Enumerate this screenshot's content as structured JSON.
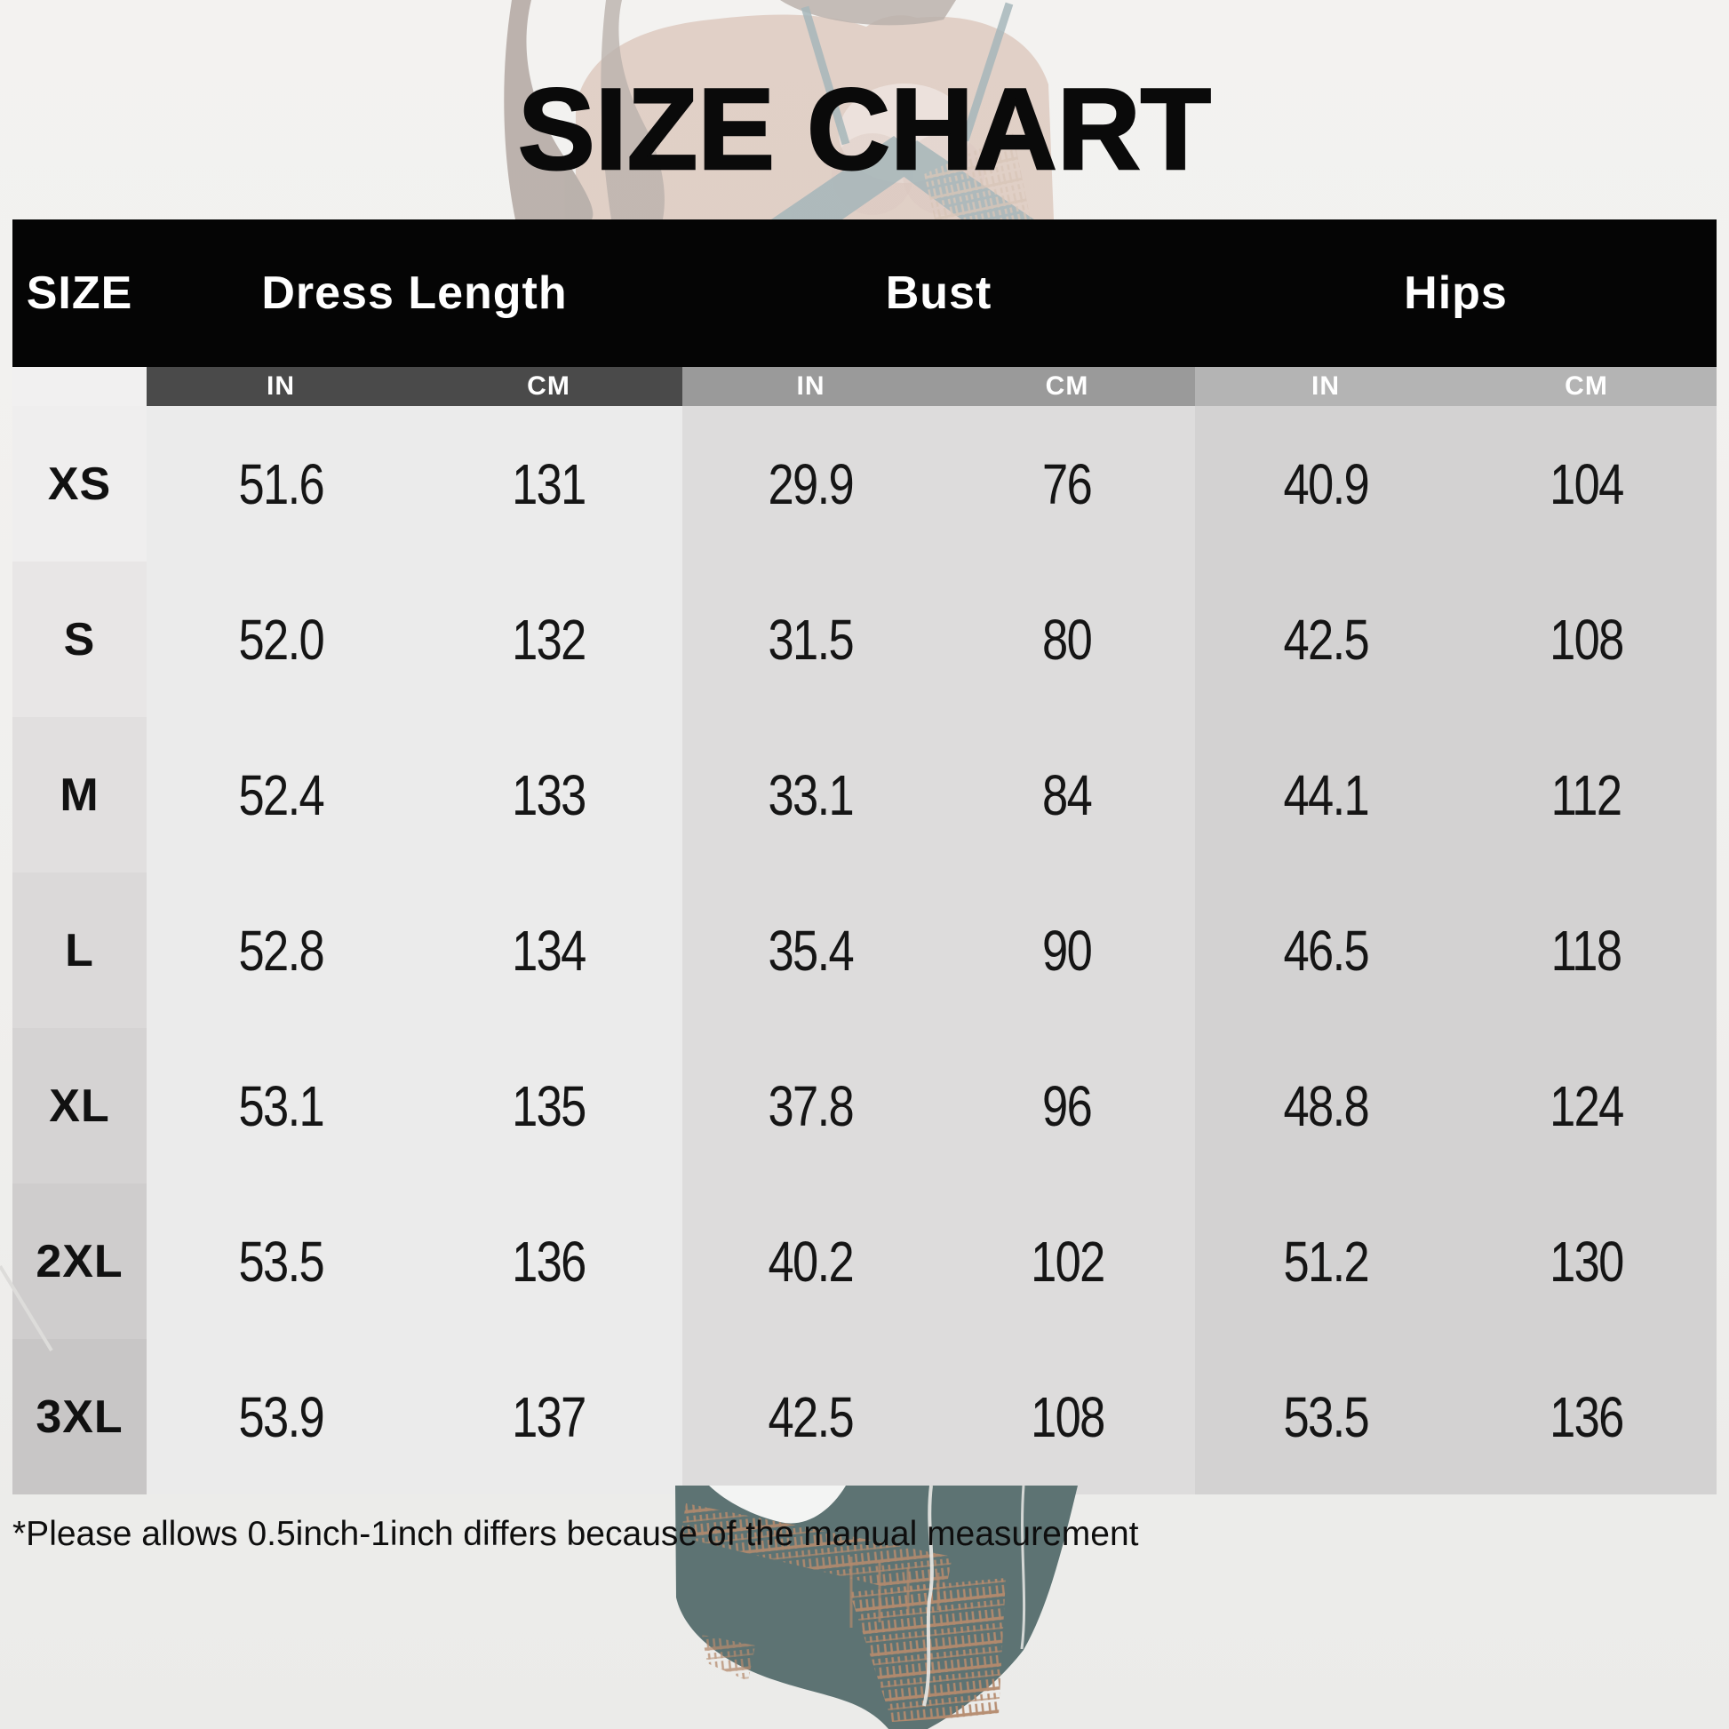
{
  "title": "SIZE CHART",
  "table": {
    "size_header": "SIZE",
    "sections": [
      "Dress Length",
      "Bust",
      "Hips"
    ],
    "units": [
      "IN",
      "CM",
      "IN",
      "CM",
      "IN",
      "CM"
    ],
    "rows": [
      {
        "label": "XS",
        "values": [
          "51.6",
          "131",
          "29.9",
          "76",
          "40.9",
          "104"
        ]
      },
      {
        "label": "S",
        "values": [
          "52.0",
          "132",
          "31.5",
          "80",
          "42.5",
          "108"
        ]
      },
      {
        "label": "M",
        "values": [
          "52.4",
          "133",
          "33.1",
          "84",
          "44.1",
          "112"
        ]
      },
      {
        "label": "L",
        "values": [
          "52.8",
          "134",
          "35.4",
          "90",
          "46.5",
          "118"
        ]
      },
      {
        "label": "XL",
        "values": [
          "53.1",
          "135",
          "37.8",
          "96",
          "48.8",
          "124"
        ]
      },
      {
        "label": "2XL",
        "values": [
          "53.5",
          "136",
          "40.2",
          "102",
          "51.2",
          "130"
        ]
      },
      {
        "label": "3XL",
        "values": [
          "53.9",
          "137",
          "42.5",
          "108",
          "53.5",
          "136"
        ]
      }
    ],
    "row_shades": [
      "#efeeee",
      "#e8e6e6",
      "#e1dfdf",
      "#dbd9d9",
      "#d5d3d3",
      "#cfcdcd",
      "#c8c6c6"
    ]
  },
  "footnote": "*Please allows 0.5inch-1inch differs because of the manual measurement",
  "colors": {
    "header-bg": "#050505",
    "sub-size": "#f1f0f0",
    "sub-dl": "#4a4a4a",
    "sub-bust": "#9a9a9a",
    "sub-hips": "#b4b4b4",
    "body-dl": "#ebebeb",
    "body-bust": "#dddcdc",
    "body-hips": "#d3d2d2",
    "dress-teal": "#5d7373",
    "dress-tan": "#b48a6d",
    "skin-tone": "#c9a28f",
    "hair-brown": "#6f5b51"
  }
}
